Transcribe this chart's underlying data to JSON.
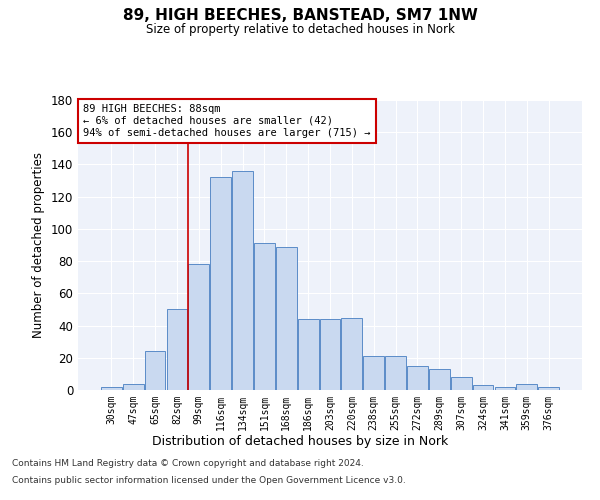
{
  "title": "89, HIGH BEECHES, BANSTEAD, SM7 1NW",
  "subtitle": "Size of property relative to detached houses in Nork",
  "xlabel": "Distribution of detached houses by size in Nork",
  "ylabel": "Number of detached properties",
  "categories": [
    "30sqm",
    "47sqm",
    "65sqm",
    "82sqm",
    "99sqm",
    "116sqm",
    "134sqm",
    "151sqm",
    "168sqm",
    "186sqm",
    "203sqm",
    "220sqm",
    "238sqm",
    "255sqm",
    "272sqm",
    "289sqm",
    "307sqm",
    "324sqm",
    "341sqm",
    "359sqm",
    "376sqm"
  ],
  "values": [
    2,
    4,
    24,
    50,
    78,
    132,
    136,
    91,
    89,
    44,
    44,
    45,
    21,
    21,
    15,
    13,
    8,
    3,
    2,
    4,
    2
  ],
  "bar_color": "#c9d9f0",
  "bar_edge_color": "#5b8cc8",
  "vline_x_index": 3.5,
  "vline_color": "#cc0000",
  "annotation_text": "89 HIGH BEECHES: 88sqm\n← 6% of detached houses are smaller (42)\n94% of semi-detached houses are larger (715) →",
  "annotation_box_color": "#ffffff",
  "annotation_box_edge_color": "#cc0000",
  "ylim": [
    0,
    180
  ],
  "yticks": [
    0,
    20,
    40,
    60,
    80,
    100,
    120,
    140,
    160,
    180
  ],
  "background_color": "#eef2fa",
  "footer_line1": "Contains HM Land Registry data © Crown copyright and database right 2024.",
  "footer_line2": "Contains public sector information licensed under the Open Government Licence v3.0."
}
